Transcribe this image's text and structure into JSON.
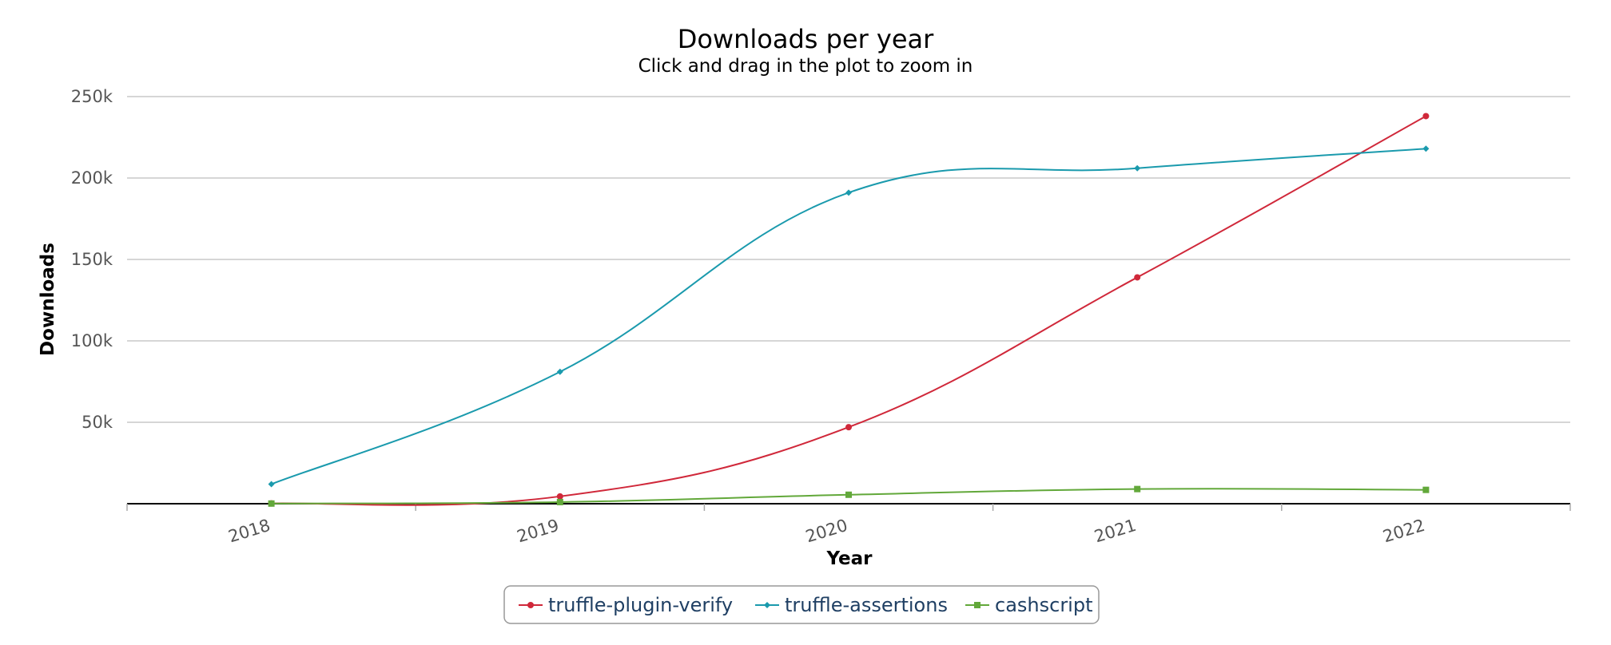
{
  "chart_data": {
    "type": "line",
    "title": "Downloads per year",
    "subtitle": "Click and drag in the plot to zoom in",
    "xlabel": "Year",
    "ylabel": "Downloads",
    "categories": [
      "2018",
      "2019",
      "2020",
      "2021",
      "2022"
    ],
    "ylim": [
      0,
      250000
    ],
    "yticks": [
      50000,
      100000,
      150000,
      200000,
      250000
    ],
    "ytick_labels": [
      "50k",
      "100k",
      "150k",
      "200k",
      "250k"
    ],
    "grid": true,
    "legend_position": "bottom-center",
    "series": [
      {
        "name": "truffle-plugin-verify",
        "color": "#d0283a",
        "marker": "circle",
        "values": [
          200,
          4500,
          47000,
          139000,
          238000
        ]
      },
      {
        "name": "truffle-assertions",
        "color": "#1a9aad",
        "marker": "diamond",
        "values": [
          12000,
          81000,
          191000,
          206000,
          218000
        ]
      },
      {
        "name": "cashscript",
        "color": "#62a83a",
        "marker": "square",
        "values": [
          100,
          1000,
          5500,
          9000,
          8500
        ]
      }
    ]
  }
}
